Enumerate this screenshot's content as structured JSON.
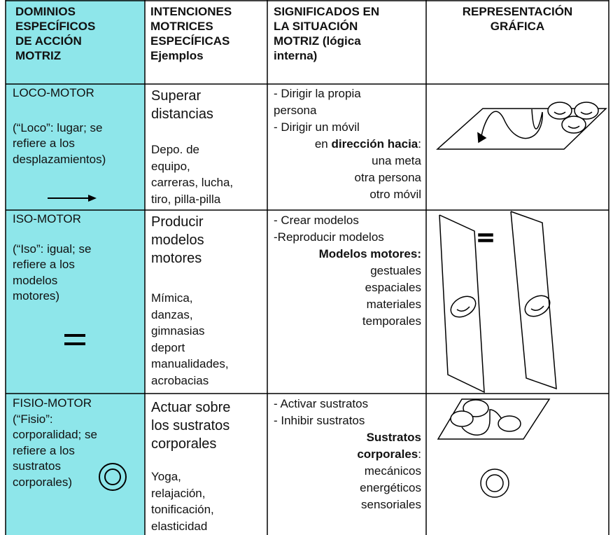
{
  "table": {
    "header": [
      [
        "DOMINIOS",
        "ESPECÍFICOS",
        "DE ACCIÓN",
        "MOTRIZ"
      ],
      [
        "INTENCIONES",
        "MOTRICES",
        "ESPECÍFICAS",
        "Ejemplos"
      ],
      [
        "SIGNIFICADOS EN",
        "LA SITUACIÓN",
        "MOTRIZ (lógica",
        "interna)"
      ],
      [
        "REPRESENTACIÓN",
        "GRÁFICA"
      ]
    ],
    "rows": [
      {
        "domain": {
          "name": "LOCO-MOTOR",
          "description": [
            "(“Loco”: lugar; se",
            "refiere a los",
            "desplazamientos)"
          ]
        },
        "intention": {
          "title": [
            "Superar",
            "distancias"
          ],
          "examples": [
            "Depo. de",
            "equipo,",
            "carreras, lucha,",
            "tiro, pilla-pilla"
          ]
        },
        "meaning": [
          "- Dirigir la propia",
          "persona",
          "- Dirigir un móvil",
          [
            "en ",
            "dirección hacia",
            ":"
          ],
          "una meta",
          "otra persona",
          "otro móvil"
        ]
      },
      {
        "domain": {
          "name": "ISO-MOTOR",
          "description": [
            "(“Iso”: igual; se",
            "refiere a los",
            "modelos",
            "motores)"
          ]
        },
        "intention": {
          "title": [
            "Producir",
            "modelos",
            "motores"
          ],
          "examples": [
            "Mímica,",
            "danzas,",
            "gimnasias",
            "deport",
            "manualidades,",
            "acrobacias"
          ]
        },
        "meaning": [
          "- Crear modelos",
          "-Reproducir modelos",
          "Modelos motores:",
          "gestuales",
          "espaciales",
          "materiales",
          "temporales"
        ]
      },
      {
        "domain": {
          "name": "FISIO-MOTOR",
          "description": [
            "(“Fisio”:",
            "corporalidad; se",
            "refiere a los",
            "sustratos",
            "corporales)"
          ]
        },
        "intention": {
          "title": [
            "Actuar sobre",
            "los sustratos",
            "corporales"
          ],
          "examples": [
            "Yoga,",
            "relajación,",
            "tonificación,",
            "elasticidad"
          ]
        },
        "meaning": [
          "- Activar sustratos",
          "- Inhibir sustratos",
          "Sustratos",
          [
            "corporales",
            ":"
          ],
          "mecánicos",
          "energéticos",
          "sensoriales"
        ]
      }
    ]
  }
}
